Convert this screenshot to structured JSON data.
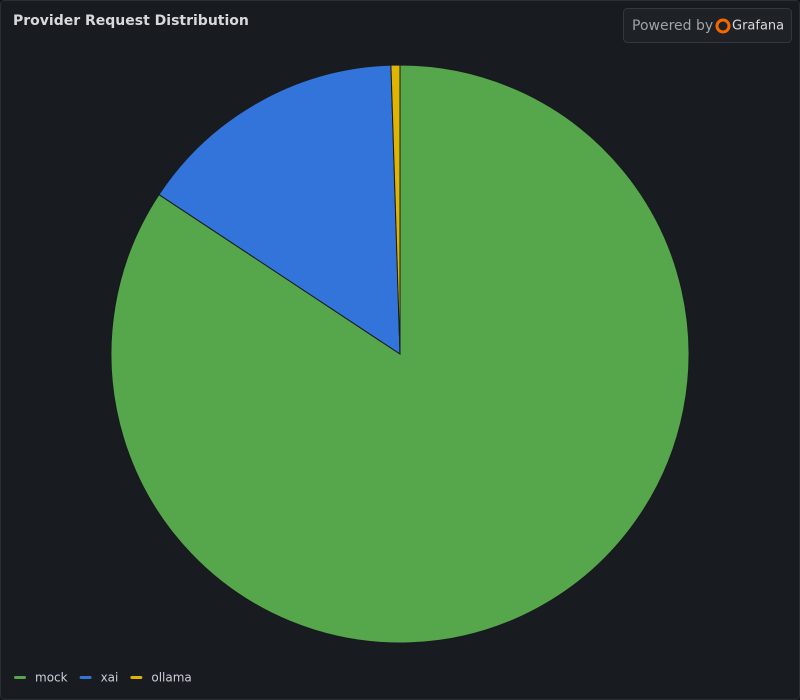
{
  "chart_data": {
    "type": "pie",
    "title": "Provider Request Distribution",
    "watermark": "Powered by",
    "brand": "Grafana",
    "series": [
      {
        "name": "mock",
        "color": "#56a64b",
        "values": [
          84.3
        ]
      },
      {
        "name": "xai",
        "color": "#3274d9",
        "values": [
          15.2
        ]
      },
      {
        "name": "ollama",
        "color": "#e0b400",
        "values": [
          0.5
        ]
      }
    ],
    "legend": "bottom-left"
  }
}
